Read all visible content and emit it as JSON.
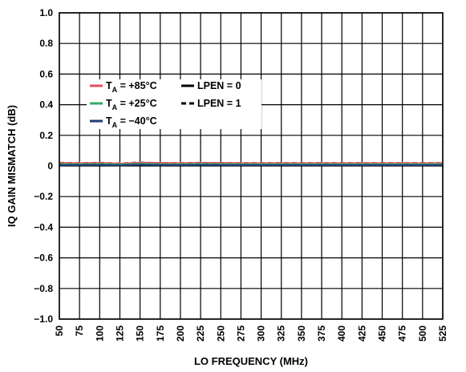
{
  "chart_data": {
    "type": "line",
    "title": "",
    "xlabel": "LO FREQUENCY (MHz)",
    "ylabel": "IQ GAIN MISMATCH (dB)",
    "xlim": [
      50,
      525
    ],
    "ylim": [
      -1.0,
      1.0
    ],
    "grid": true,
    "x_ticks": [
      "50",
      "75",
      "100",
      "125",
      "150",
      "175",
      "200",
      "225",
      "250",
      "275",
      "300",
      "325",
      "350",
      "375",
      "400",
      "425",
      "450",
      "475",
      "500",
      "525"
    ],
    "y_ticks": [
      "1.0",
      "0.8",
      "0.6",
      "0.4",
      "0.2",
      "0",
      "−0.2",
      "−0.4",
      "−0.6",
      "−0.8",
      "−1.0"
    ],
    "legend_position": "upper-left",
    "legend": [
      {
        "sym": "T",
        "sub": "A",
        "rest": " = +85°C",
        "color": "#e0505a",
        "dash": "solid"
      },
      {
        "sym": "T",
        "sub": "A",
        "rest": " = +25°C",
        "color": "#3aa86b",
        "dash": "solid"
      },
      {
        "sym": "T",
        "sub": "A",
        "rest": " = −40°C",
        "color": "#1e3a78",
        "dash": "solid"
      },
      {
        "label": "LPEN = 0",
        "color": "#000000",
        "dash": "solid"
      },
      {
        "label": "LPEN = 1",
        "color": "#000000",
        "dash": "dashed"
      }
    ],
    "series": [
      {
        "color": "#e0505a",
        "dash": "solid",
        "x": [
          50,
          75,
          100,
          125,
          150,
          175,
          200,
          225,
          250,
          275,
          300,
          325,
          350,
          375,
          400,
          425,
          450,
          475,
          500,
          525
        ],
        "values": [
          0.02,
          0.018,
          0.02,
          0.015,
          0.022,
          0.02,
          0.018,
          0.02,
          0.02,
          0.018,
          0.018,
          0.018,
          0.018,
          0.018,
          0.018,
          0.018,
          0.018,
          0.018,
          0.018,
          0.018
        ]
      },
      {
        "color": "#e0505a",
        "dash": "dashed",
        "x": [
          50,
          75,
          100,
          125,
          150,
          175,
          200,
          225,
          250,
          275,
          300,
          325,
          350,
          375,
          400,
          425,
          450,
          475,
          500,
          525
        ],
        "values": [
          0.022,
          0.02,
          0.022,
          0.018,
          0.024,
          0.02,
          0.02,
          0.022,
          0.02,
          0.02,
          0.02,
          0.02,
          0.02,
          0.02,
          0.02,
          0.02,
          0.02,
          0.02,
          0.02,
          0.02
        ]
      },
      {
        "color": "#3aa86b",
        "dash": "solid",
        "x": [
          50,
          75,
          100,
          125,
          150,
          175,
          200,
          225,
          250,
          275,
          300,
          325,
          350,
          375,
          400,
          425,
          450,
          475,
          500,
          525
        ],
        "values": [
          0.012,
          0.012,
          0.014,
          0.01,
          0.015,
          0.012,
          0.012,
          0.014,
          0.012,
          0.012,
          0.012,
          0.012,
          0.012,
          0.012,
          0.012,
          0.012,
          0.012,
          0.012,
          0.012,
          0.012
        ]
      },
      {
        "color": "#3aa86b",
        "dash": "dashed",
        "x": [
          50,
          75,
          100,
          125,
          150,
          175,
          200,
          225,
          250,
          275,
          300,
          325,
          350,
          375,
          400,
          425,
          450,
          475,
          500,
          525
        ],
        "values": [
          0.014,
          0.012,
          0.014,
          0.012,
          0.016,
          0.012,
          0.012,
          0.014,
          0.014,
          0.012,
          0.012,
          0.012,
          0.012,
          0.012,
          0.012,
          0.012,
          0.012,
          0.012,
          0.012,
          0.012
        ]
      },
      {
        "color": "#1e3a78",
        "dash": "solid",
        "x": [
          50,
          75,
          100,
          125,
          150,
          175,
          200,
          225,
          250,
          275,
          300,
          325,
          350,
          375,
          400,
          425,
          450,
          475,
          500,
          525
        ],
        "values": [
          0.005,
          0.006,
          0.006,
          0.004,
          0.008,
          0.006,
          0.005,
          0.006,
          0.006,
          0.005,
          0.005,
          0.005,
          0.005,
          0.005,
          0.005,
          0.005,
          0.005,
          0.005,
          0.005,
          0.005
        ]
      },
      {
        "color": "#1e3a78",
        "dash": "dashed",
        "x": [
          50,
          75,
          100,
          125,
          150,
          175,
          200,
          225,
          250,
          275,
          300,
          325,
          350,
          375,
          400,
          425,
          450,
          475,
          500,
          525
        ],
        "values": [
          0.007,
          0.006,
          0.008,
          0.005,
          0.009,
          0.006,
          0.006,
          0.008,
          0.006,
          0.006,
          0.006,
          0.006,
          0.006,
          0.006,
          0.006,
          0.006,
          0.006,
          0.006,
          0.006,
          0.006
        ]
      }
    ]
  }
}
